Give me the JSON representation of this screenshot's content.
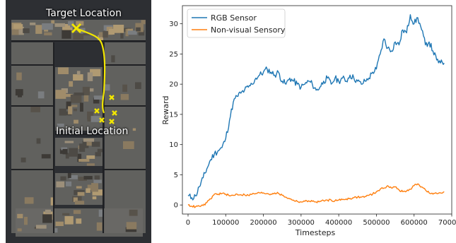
{
  "map": {
    "target_label": "Target Location",
    "initial_label": "Initial Location",
    "floor_color": "#6b6a66",
    "wall_color": "#2d2f33",
    "path_color": "#f2e600",
    "marker_color": "#f2e600"
  },
  "chart_data": {
    "type": "line",
    "xlabel": "Timesteps",
    "ylabel": "Reward",
    "xlim": [
      -15000,
      700000
    ],
    "ylim": [
      -1.5,
      33
    ],
    "xticks": [
      0,
      100000,
      200000,
      300000,
      400000,
      500000,
      600000,
      700000
    ],
    "yticks": [
      0,
      5,
      10,
      15,
      20,
      25,
      30
    ],
    "legend_position": "top-left",
    "grid": false,
    "series": [
      {
        "name": "RGB Sensor",
        "color": "#1f77b4",
        "x": [
          0,
          10000,
          20000,
          30000,
          40000,
          50000,
          60000,
          70000,
          80000,
          90000,
          100000,
          110000,
          120000,
          130000,
          140000,
          150000,
          160000,
          170000,
          180000,
          190000,
          200000,
          210000,
          220000,
          230000,
          240000,
          250000,
          260000,
          270000,
          280000,
          290000,
          300000,
          310000,
          320000,
          330000,
          340000,
          350000,
          360000,
          370000,
          380000,
          390000,
          400000,
          410000,
          420000,
          430000,
          440000,
          450000,
          460000,
          470000,
          480000,
          490000,
          500000,
          510000,
          520000,
          530000,
          540000,
          550000,
          560000,
          570000,
          580000,
          590000,
          600000,
          610000,
          620000,
          630000,
          640000,
          650000,
          660000,
          670000,
          680000
        ],
        "y": [
          1.5,
          1.2,
          1.5,
          3.0,
          4.5,
          6.0,
          7.5,
          8.5,
          9.0,
          9.5,
          11.0,
          14.0,
          17.0,
          18.0,
          18.5,
          19.0,
          19.5,
          20.0,
          21.0,
          21.5,
          22.0,
          22.5,
          22.0,
          21.5,
          22.0,
          20.5,
          20.0,
          21.0,
          20.5,
          20.0,
          19.5,
          20.0,
          20.5,
          20.0,
          19.0,
          19.5,
          20.5,
          21.0,
          20.0,
          21.0,
          20.5,
          21.0,
          20.5,
          21.5,
          21.0,
          20.5,
          20.0,
          20.5,
          21.0,
          22.0,
          22.5,
          25.0,
          27.5,
          26.0,
          25.5,
          27.0,
          26.5,
          29.0,
          28.5,
          31.5,
          30.0,
          31.0,
          29.0,
          26.5,
          27.0,
          25.5,
          24.0,
          23.5,
          23.5
        ]
      },
      {
        "name": "Non-visual Sensory",
        "color": "#ff7f0e",
        "x": [
          0,
          10000,
          20000,
          30000,
          40000,
          50000,
          60000,
          70000,
          80000,
          90000,
          100000,
          110000,
          120000,
          130000,
          140000,
          150000,
          160000,
          170000,
          180000,
          190000,
          200000,
          210000,
          220000,
          230000,
          240000,
          250000,
          260000,
          270000,
          280000,
          290000,
          300000,
          310000,
          320000,
          330000,
          340000,
          350000,
          360000,
          370000,
          380000,
          390000,
          400000,
          410000,
          420000,
          430000,
          440000,
          450000,
          460000,
          470000,
          480000,
          490000,
          500000,
          510000,
          520000,
          530000,
          540000,
          550000,
          560000,
          570000,
          580000,
          590000,
          600000,
          610000,
          620000,
          630000,
          640000,
          650000,
          660000,
          670000,
          680000
        ],
        "y": [
          0.0,
          -0.2,
          -0.3,
          -0.2,
          -0.1,
          0.4,
          1.0,
          1.8,
          1.8,
          1.9,
          1.8,
          1.5,
          1.6,
          1.8,
          1.7,
          1.7,
          1.6,
          1.8,
          1.9,
          2.0,
          2.0,
          1.9,
          1.8,
          2.0,
          1.9,
          1.6,
          1.3,
          1.0,
          0.8,
          0.6,
          0.5,
          0.6,
          0.7,
          0.6,
          0.5,
          0.6,
          0.7,
          0.8,
          0.8,
          0.7,
          0.8,
          0.9,
          1.0,
          1.1,
          1.2,
          1.3,
          1.3,
          1.4,
          1.6,
          1.8,
          2.2,
          2.6,
          2.8,
          3.2,
          2.8,
          3.0,
          2.5,
          2.2,
          2.3,
          2.6,
          3.2,
          3.5,
          3.0,
          2.5,
          2.0,
          1.8,
          1.9,
          2.0,
          2.2
        ]
      }
    ]
  }
}
